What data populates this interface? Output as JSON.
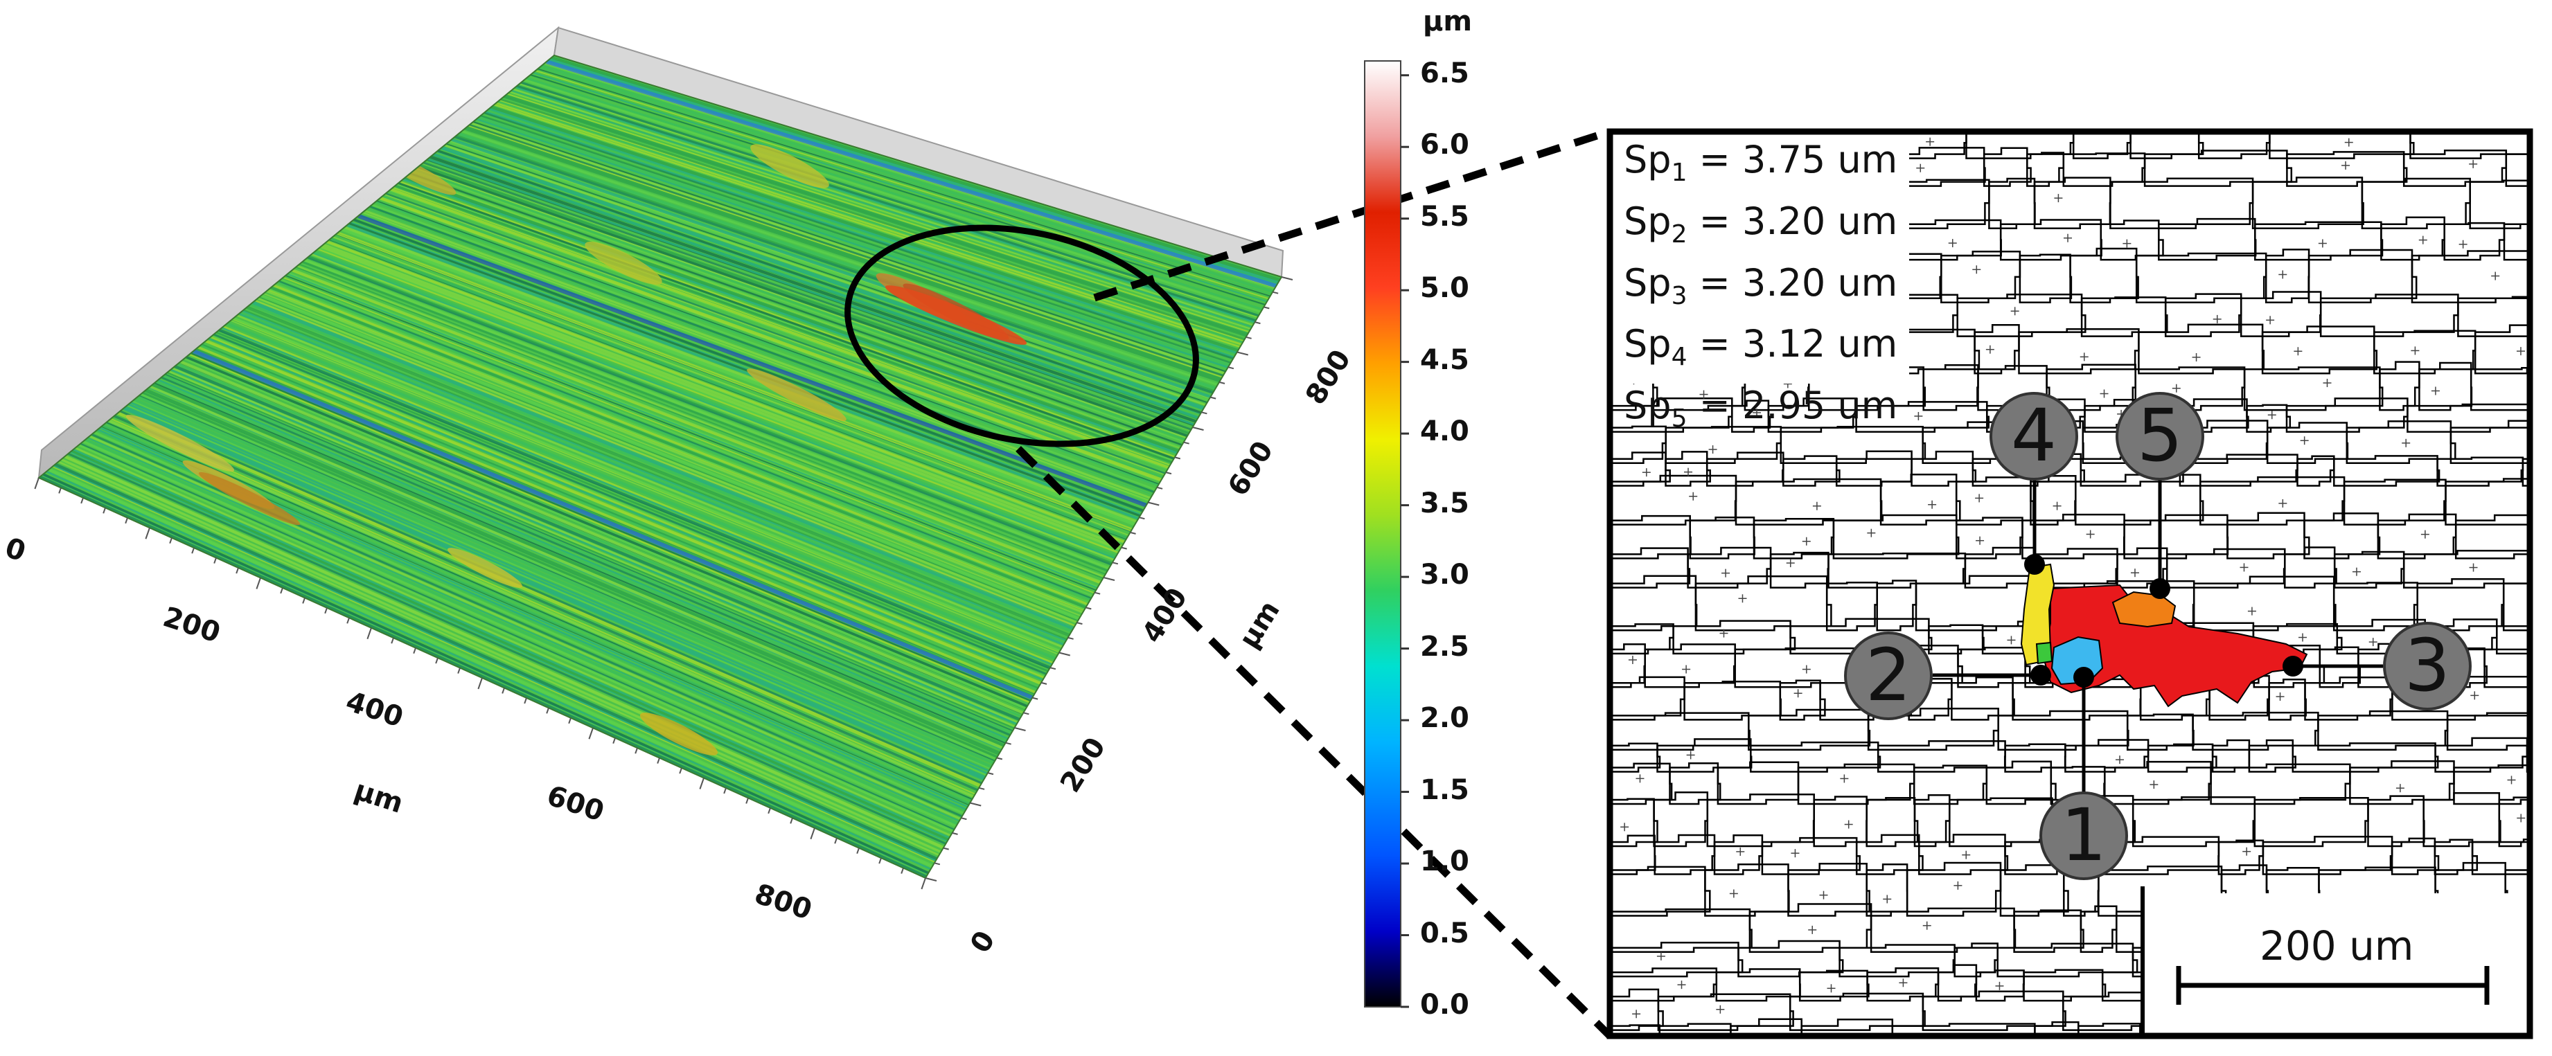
{
  "surface_plot": {
    "x_axis": {
      "unit": "µm",
      "ticks": [
        "0",
        "200",
        "400",
        "600",
        "800"
      ]
    },
    "y_axis": {
      "unit": "µm",
      "ticks": [
        "0",
        "200",
        "400",
        "600",
        "800"
      ]
    }
  },
  "colorbar": {
    "unit": "µm",
    "ticks": [
      "6.5",
      "6.0",
      "5.5",
      "5.0",
      "4.5",
      "4.0",
      "3.5",
      "3.0",
      "2.5",
      "2.0",
      "1.5",
      "1.0",
      "0.5",
      "0.0"
    ],
    "min": 0.0,
    "max": 6.6,
    "colors": [
      "#000000",
      "#0000c8",
      "#0055ff",
      "#00b4ff",
      "#00e0d0",
      "#30d060",
      "#a0e020",
      "#f0f000",
      "#ffa000",
      "#ff4020",
      "#e02000",
      "#f0a0a0",
      "#ffffff"
    ]
  },
  "detail": {
    "summits": [
      {
        "name": "Sp",
        "sub": "1",
        "value": "= 3.75 um"
      },
      {
        "name": "Sp",
        "sub": "2",
        "value": "= 3.20 um"
      },
      {
        "name": "Sp",
        "sub": "3",
        "value": "= 3.20 um"
      },
      {
        "name": "Sp",
        "sub": "4",
        "value": "= 3.12 um"
      },
      {
        "name": "Sp",
        "sub": "5",
        "value": "= 2.95 um"
      }
    ],
    "markers": [
      "1",
      "2",
      "3",
      "4",
      "5"
    ],
    "region_colors": {
      "red": "#e8191c",
      "yellow": "#f2e22a",
      "blue": "#3db8ef",
      "orange": "#f07f15",
      "green": "#3cc83c"
    },
    "scale_bar": "200 um"
  }
}
